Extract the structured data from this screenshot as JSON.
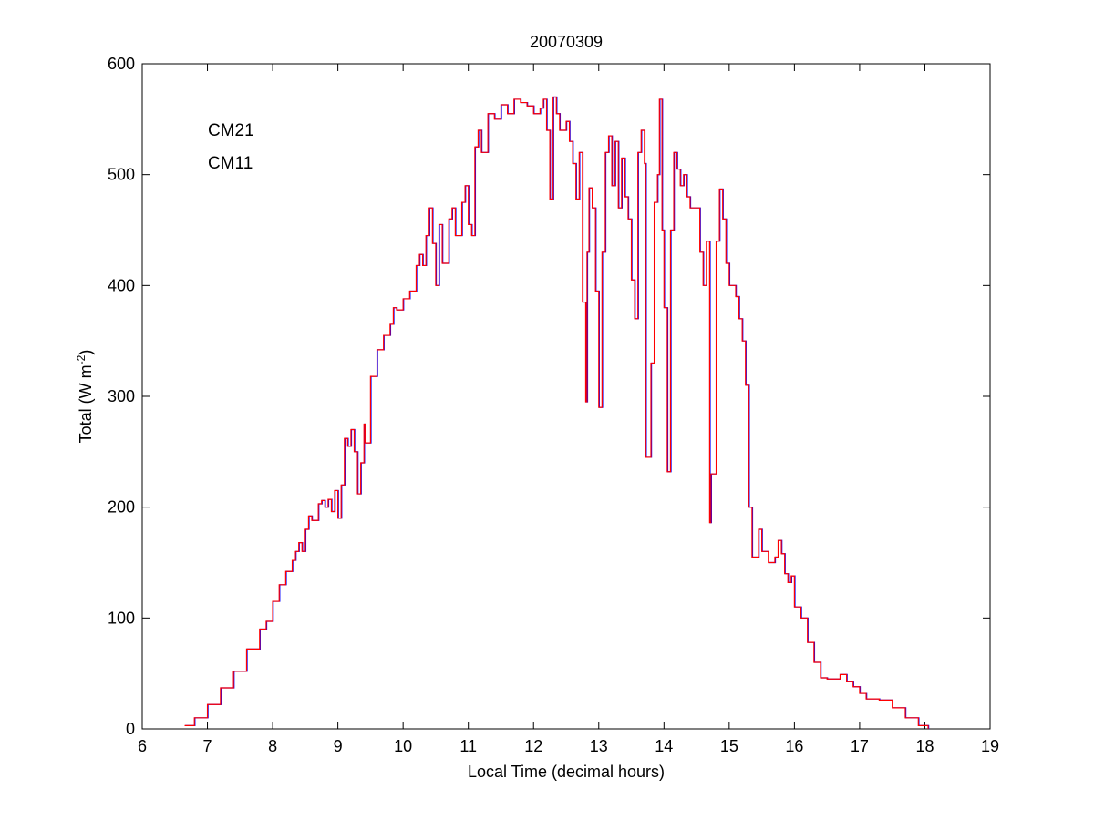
{
  "chart_data": {
    "type": "line",
    "title": "20070309",
    "xlabel": "Local Time (decimal hours)",
    "ylabel": "Total (W m",
    "ylabel_sup": "-2",
    "ylabel_end": ")",
    "xlim": [
      6,
      19
    ],
    "ylim": [
      0,
      600
    ],
    "xticks": [
      6,
      7,
      8,
      9,
      10,
      11,
      12,
      13,
      14,
      15,
      16,
      17,
      18,
      19
    ],
    "yticks": [
      0,
      100,
      200,
      300,
      400,
      500,
      600
    ],
    "legend_position": "top-left",
    "x": [
      6.65,
      6.8,
      7.0,
      7.2,
      7.4,
      7.6,
      7.8,
      7.9,
      8.0,
      8.1,
      8.2,
      8.3,
      8.35,
      8.4,
      8.45,
      8.5,
      8.55,
      8.6,
      8.7,
      8.75,
      8.8,
      8.85,
      8.9,
      8.95,
      9.0,
      9.05,
      9.1,
      9.15,
      9.2,
      9.25,
      9.3,
      9.35,
      9.4,
      9.42,
      9.5,
      9.6,
      9.7,
      9.8,
      9.85,
      9.9,
      10.0,
      10.1,
      10.2,
      10.25,
      10.3,
      10.35,
      10.4,
      10.45,
      10.5,
      10.55,
      10.6,
      10.7,
      10.75,
      10.8,
      10.9,
      10.95,
      11.0,
      11.05,
      11.1,
      11.15,
      11.2,
      11.3,
      11.4,
      11.5,
      11.6,
      11.7,
      11.8,
      11.9,
      12.0,
      12.1,
      12.15,
      12.2,
      12.25,
      12.3,
      12.35,
      12.4,
      12.5,
      12.55,
      12.6,
      12.65,
      12.7,
      12.75,
      12.8,
      12.82,
      12.85,
      12.9,
      12.95,
      13.0,
      13.05,
      13.1,
      13.15,
      13.2,
      13.25,
      13.3,
      13.35,
      13.4,
      13.45,
      13.5,
      13.55,
      13.6,
      13.65,
      13.7,
      13.72,
      13.8,
      13.85,
      13.9,
      13.93,
      13.97,
      14.0,
      14.05,
      14.1,
      14.15,
      14.2,
      14.25,
      14.3,
      14.35,
      14.4,
      14.5,
      14.55,
      14.6,
      14.65,
      14.7,
      14.72,
      14.8,
      14.85,
      14.9,
      14.95,
      15.0,
      15.1,
      15.15,
      15.2,
      15.25,
      15.3,
      15.35,
      15.45,
      15.5,
      15.6,
      15.7,
      15.75,
      15.8,
      15.85,
      15.9,
      15.95,
      16.0,
      16.1,
      16.2,
      16.3,
      16.4,
      16.5,
      16.6,
      16.7,
      16.8,
      16.9,
      17.0,
      17.1,
      17.3,
      17.5,
      17.7,
      17.9,
      18.05
    ],
    "series": [
      {
        "name": "CM21",
        "color": "#0000ff",
        "values": [
          3,
          10,
          22,
          37,
          52,
          72,
          90,
          97,
          115,
          130,
          142,
          152,
          160,
          168,
          160,
          180,
          192,
          188,
          203,
          206,
          200,
          207,
          196,
          215,
          190,
          220,
          262,
          255,
          270,
          250,
          212,
          240,
          275,
          258,
          318,
          342,
          355,
          365,
          380,
          378,
          388,
          395,
          418,
          428,
          418,
          445,
          470,
          438,
          400,
          455,
          420,
          460,
          470,
          445,
          475,
          490,
          455,
          445,
          525,
          540,
          520,
          555,
          550,
          563,
          555,
          568,
          565,
          562,
          555,
          560,
          568,
          540,
          478,
          570,
          555,
          540,
          548,
          530,
          510,
          478,
          520,
          385,
          295,
          430,
          488,
          470,
          395,
          290,
          430,
          520,
          535,
          490,
          530,
          470,
          515,
          480,
          460,
          405,
          370,
          520,
          540,
          510,
          245,
          330,
          475,
          500,
          568,
          450,
          380,
          232,
          450,
          520,
          505,
          490,
          500,
          480,
          470,
          470,
          430,
          400,
          440,
          186,
          230,
          440,
          487,
          460,
          420,
          400,
          390,
          370,
          350,
          310,
          200,
          155,
          180,
          160,
          150,
          155,
          170,
          158,
          140,
          132,
          138,
          110,
          100,
          78,
          60,
          46,
          45,
          45,
          49,
          43,
          38,
          32,
          27,
          26,
          19,
          10,
          3,
          0
        ]
      },
      {
        "name": "CM11",
        "color": "#ff0000",
        "values": [
          3,
          10,
          22,
          37,
          52,
          72,
          90,
          97,
          115,
          130,
          142,
          152,
          160,
          168,
          160,
          180,
          192,
          188,
          203,
          206,
          200,
          207,
          196,
          215,
          190,
          220,
          262,
          255,
          270,
          250,
          212,
          240,
          275,
          258,
          318,
          342,
          355,
          365,
          380,
          378,
          388,
          395,
          418,
          428,
          418,
          445,
          470,
          438,
          400,
          455,
          420,
          460,
          470,
          445,
          475,
          490,
          455,
          445,
          525,
          540,
          520,
          555,
          550,
          563,
          555,
          568,
          565,
          562,
          555,
          560,
          568,
          540,
          478,
          570,
          555,
          540,
          548,
          530,
          510,
          478,
          520,
          385,
          295,
          430,
          488,
          470,
          395,
          290,
          430,
          520,
          535,
          490,
          530,
          470,
          515,
          480,
          460,
          405,
          370,
          520,
          540,
          510,
          245,
          330,
          475,
          500,
          568,
          450,
          380,
          232,
          450,
          520,
          505,
          490,
          500,
          480,
          470,
          470,
          430,
          400,
          440,
          186,
          230,
          440,
          487,
          460,
          420,
          400,
          390,
          370,
          350,
          310,
          200,
          155,
          180,
          160,
          150,
          155,
          170,
          158,
          140,
          132,
          138,
          110,
          100,
          78,
          60,
          46,
          45,
          45,
          49,
          43,
          38,
          32,
          27,
          26,
          19,
          10,
          3,
          0
        ]
      }
    ]
  }
}
